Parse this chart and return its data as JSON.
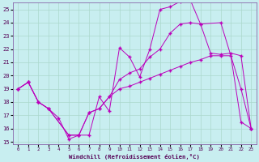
{
  "xlabel": "Windchill (Refroidissement éolien,°C)",
  "bg_color": "#c8eef0",
  "grid_color": "#aad8cc",
  "line_color": "#bb00bb",
  "spine_color": "#8866aa",
  "tick_color": "#550055",
  "xlim": [
    -0.5,
    23.5
  ],
  "ylim": [
    14.8,
    25.5
  ],
  "yticks": [
    15,
    16,
    17,
    18,
    19,
    20,
    21,
    22,
    23,
    24,
    25
  ],
  "xticks": [
    0,
    1,
    2,
    3,
    4,
    5,
    6,
    7,
    8,
    9,
    10,
    11,
    12,
    13,
    14,
    15,
    16,
    17,
    18,
    19,
    20,
    21,
    22,
    23
  ],
  "line1_x": [
    0,
    1,
    2,
    3,
    4,
    5,
    6,
    7,
    8,
    9,
    10,
    11,
    12,
    13,
    14,
    15,
    16,
    17,
    18,
    20,
    22,
    23
  ],
  "line1_y": [
    19.0,
    19.5,
    18.0,
    17.5,
    16.8,
    15.2,
    15.5,
    15.5,
    18.4,
    17.3,
    22.1,
    21.4,
    19.9,
    22.0,
    25.0,
    25.2,
    25.6,
    25.7,
    23.9,
    24.0,
    19.0,
    16.0
  ],
  "line2_x": [
    0,
    1,
    2,
    3,
    5,
    6,
    7,
    8,
    9,
    10,
    11,
    12,
    13,
    14,
    15,
    16,
    17,
    18,
    19,
    20,
    21,
    22,
    23
  ],
  "line2_y": [
    19.0,
    19.5,
    18.0,
    17.5,
    15.5,
    15.5,
    17.2,
    17.5,
    18.4,
    19.7,
    20.2,
    20.5,
    21.4,
    22.0,
    23.2,
    23.9,
    24.0,
    23.9,
    21.7,
    21.6,
    21.7,
    21.5,
    16.0
  ],
  "line3_x": [
    0,
    1,
    2,
    3,
    5,
    6,
    7,
    8,
    9,
    10,
    11,
    12,
    13,
    14,
    15,
    16,
    17,
    18,
    19,
    20,
    21,
    22,
    23
  ],
  "line3_y": [
    19.0,
    19.5,
    18.0,
    17.5,
    15.5,
    15.5,
    17.2,
    17.5,
    18.4,
    19.0,
    19.2,
    19.5,
    19.8,
    20.1,
    20.4,
    20.7,
    21.0,
    21.2,
    21.5,
    21.5,
    21.5,
    16.5,
    16.0
  ]
}
